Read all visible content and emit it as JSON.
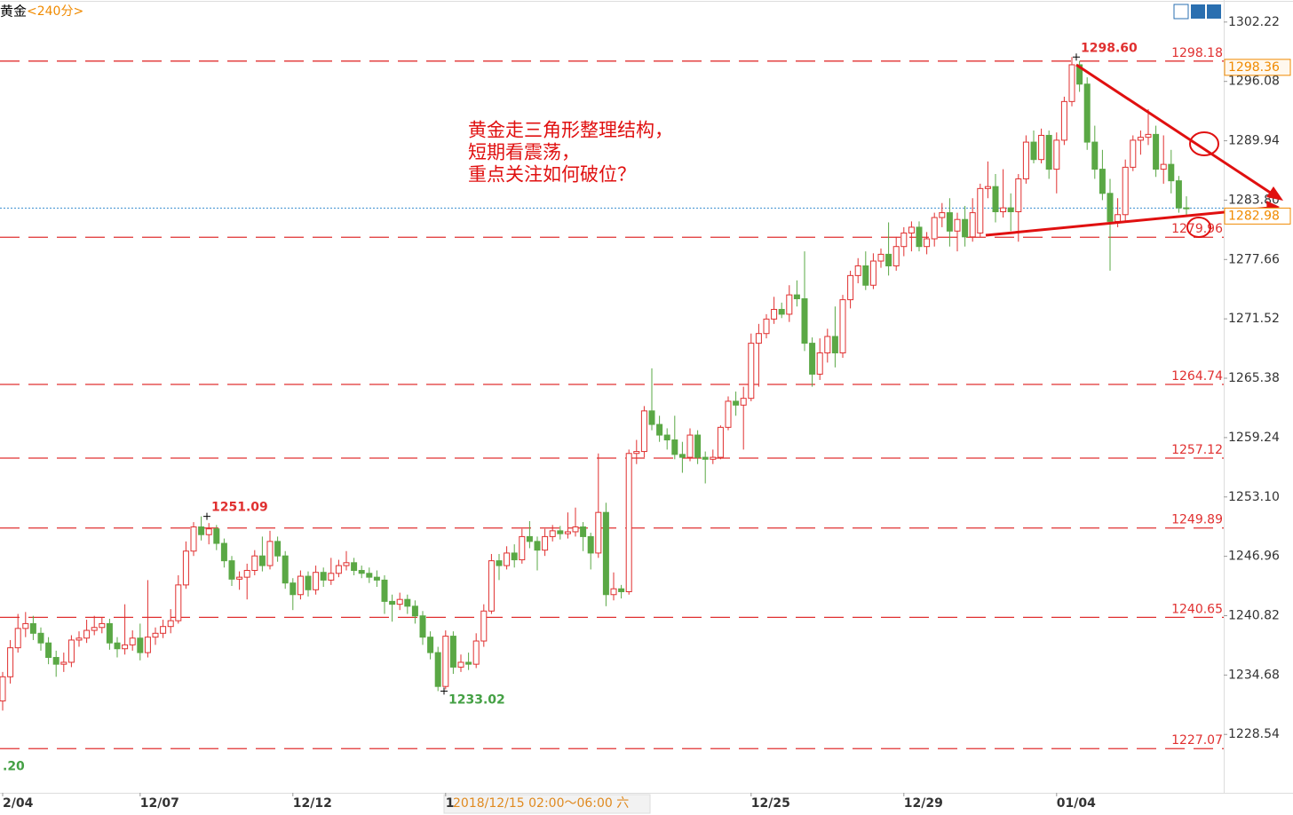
{
  "chart_data": {
    "type": "candlestick",
    "title": "黄金",
    "period": "<240分>",
    "note": [
      "黄金走三角形整理结构，",
      "短期看震荡，",
      "重点关注如何破位？"
    ],
    "cursor_label": "2018/12/15 02:00～06:00 六",
    "up_color": "#e03030",
    "down_color": "#5aa845",
    "ylim": [
      1222.5,
      1304.5
    ],
    "yticks": [
      1302.22,
      1296.08,
      1289.94,
      {
        "value": 1283.8,
        "label": "1283.80"
      },
      1277.66,
      1271.52,
      1265.38,
      1259.24,
      {
        "value": 1253.1,
        "label": "1253.10"
      },
      1246.96,
      1240.82,
      1234.68,
      1228.54
    ],
    "levels": [
      1298.18,
      1279.96,
      1264.74,
      1257.12,
      1249.89,
      1240.65,
      1227.07
    ],
    "price_tags": [
      1298.36,
      1282.98
    ],
    "extremes": [
      {
        "value": 1298.6,
        "label": "1298.60"
      },
      1251.09,
      1233.02,
      {
        "value": 1225.2,
        "label": ".20"
      }
    ],
    "categories": [
      "2/04",
      null,
      null,
      null,
      null,
      null,
      null,
      null,
      null,
      null,
      null,
      null,
      null,
      null,
      null,
      null,
      null,
      null,
      "12/07",
      null,
      null,
      null,
      null,
      null,
      null,
      null,
      null,
      null,
      null,
      null,
      null,
      null,
      null,
      null,
      null,
      null,
      null,
      null,
      "12/12",
      null,
      null,
      null,
      null,
      null,
      null,
      null,
      null,
      null,
      null,
      null,
      null,
      null,
      null,
      null,
      null,
      null,
      null,
      null,
      "1",
      null,
      null,
      null,
      null,
      null,
      null,
      null,
      null,
      null,
      null,
      null,
      null,
      null,
      null,
      null,
      null,
      null,
      null,
      null,
      null,
      null,
      null,
      null,
      null,
      null,
      null,
      null,
      null,
      null,
      null,
      null,
      null,
      null,
      null,
      null,
      null,
      null,
      null,
      null,
      "12/25",
      null,
      null,
      null,
      null,
      null,
      null,
      null,
      null,
      null,
      null,
      null,
      null,
      null,
      null,
      null,
      null,
      null,
      null,
      null,
      "12/29",
      null,
      null,
      null,
      null,
      null,
      null,
      null,
      null,
      null,
      null,
      null,
      null,
      null,
      null,
      null,
      null,
      null,
      null,
      null,
      "01/04",
      null,
      null,
      null,
      null,
      null,
      null,
      null,
      null,
      null,
      null,
      null,
      null,
      null,
      null,
      null,
      null,
      null
    ],
    "ohlc": [
      [
        1232.0,
        1235.0,
        1231.0,
        1234.5
      ],
      [
        1234.5,
        1238.3,
        1233.8,
        1237.5
      ],
      [
        1237.5,
        1241.0,
        1237.0,
        1239.5
      ],
      [
        1239.5,
        1241.2,
        1238.6,
        1240.0
      ],
      [
        1240.0,
        1240.8,
        1238.3,
        1239.0
      ],
      [
        1239.0,
        1239.6,
        1237.2,
        1238.0
      ],
      [
        1238.0,
        1238.6,
        1235.8,
        1236.5
      ],
      [
        1236.5,
        1237.2,
        1234.5,
        1235.8
      ],
      [
        1235.8,
        1237.0,
        1235.0,
        1236.0
      ],
      [
        1236.0,
        1238.8,
        1235.5,
        1238.3
      ],
      [
        1238.3,
        1239.2,
        1237.6,
        1238.5
      ],
      [
        1238.5,
        1240.4,
        1238.0,
        1239.3
      ],
      [
        1239.3,
        1240.8,
        1238.8,
        1239.6
      ],
      [
        1239.6,
        1240.6,
        1239.0,
        1240.0
      ],
      [
        1240.0,
        1240.5,
        1237.3,
        1238.0
      ],
      [
        1238.0,
        1238.6,
        1236.5,
        1237.4
      ],
      [
        1237.4,
        1242.0,
        1236.8,
        1237.8
      ],
      [
        1237.8,
        1239.3,
        1237.2,
        1238.5
      ],
      [
        1238.5,
        1240.0,
        1236.2,
        1237.0
      ],
      [
        1237.0,
        1244.5,
        1236.5,
        1238.6
      ],
      [
        1238.6,
        1239.6,
        1237.8,
        1239.0
      ],
      [
        1239.0,
        1240.4,
        1238.5,
        1239.7
      ],
      [
        1239.7,
        1241.5,
        1239.0,
        1240.3
      ],
      [
        1240.3,
        1245.0,
        1240.0,
        1244.0
      ],
      [
        1244.0,
        1248.5,
        1243.6,
        1247.5
      ],
      [
        1247.5,
        1250.5,
        1247.0,
        1250.0
      ],
      [
        1250.0,
        1251.09,
        1248.6,
        1249.2
      ],
      [
        1249.2,
        1250.4,
        1248.2,
        1249.8
      ],
      [
        1249.8,
        1250.2,
        1247.6,
        1248.3
      ],
      [
        1248.3,
        1248.8,
        1245.8,
        1246.5
      ],
      [
        1246.5,
        1247.0,
        1243.9,
        1244.6
      ],
      [
        1244.6,
        1245.4,
        1243.5,
        1244.8
      ],
      [
        1244.8,
        1246.2,
        1242.5,
        1245.5
      ],
      [
        1245.5,
        1247.6,
        1245.0,
        1247.0
      ],
      [
        1247.0,
        1249.0,
        1245.4,
        1246.0
      ],
      [
        1246.0,
        1249.6,
        1245.6,
        1248.5
      ],
      [
        1248.5,
        1249.0,
        1246.4,
        1247.0
      ],
      [
        1247.0,
        1247.5,
        1243.6,
        1244.2
      ],
      [
        1244.2,
        1244.7,
        1241.4,
        1243.0
      ],
      [
        1243.0,
        1245.5,
        1242.5,
        1244.9
      ],
      [
        1244.9,
        1245.4,
        1242.8,
        1243.5
      ],
      [
        1243.5,
        1246.0,
        1243.0,
        1245.3
      ],
      [
        1245.3,
        1245.8,
        1243.8,
        1244.5
      ],
      [
        1244.5,
        1246.8,
        1244.0,
        1245.2
      ],
      [
        1245.2,
        1246.6,
        1244.8,
        1246.0
      ],
      [
        1246.0,
        1247.5,
        1245.5,
        1246.3
      ],
      [
        1246.3,
        1246.8,
        1245.0,
        1245.5
      ],
      [
        1245.5,
        1246.0,
        1244.7,
        1245.2
      ],
      [
        1245.2,
        1245.8,
        1244.2,
        1244.8
      ],
      [
        1244.8,
        1245.5,
        1243.8,
        1244.5
      ],
      [
        1244.5,
        1245.0,
        1241.0,
        1242.3
      ],
      [
        1242.3,
        1243.0,
        1240.2,
        1242.0
      ],
      [
        1242.0,
        1243.2,
        1241.4,
        1242.5
      ],
      [
        1242.5,
        1243.0,
        1241.0,
        1241.8
      ],
      [
        1241.8,
        1242.4,
        1240.0,
        1240.8
      ],
      [
        1240.8,
        1241.3,
        1237.8,
        1238.6
      ],
      [
        1238.6,
        1239.2,
        1236.3,
        1237.0
      ],
      [
        1237.0,
        1237.6,
        1233.02,
        1233.5
      ],
      [
        1233.5,
        1239.3,
        1233.2,
        1238.7
      ],
      [
        1238.7,
        1239.2,
        1234.8,
        1235.5
      ],
      [
        1235.5,
        1236.8,
        1235.0,
        1236.0
      ],
      [
        1236.0,
        1237.0,
        1235.2,
        1235.8
      ],
      [
        1235.8,
        1239.0,
        1235.4,
        1238.2
      ],
      [
        1238.2,
        1242.0,
        1237.6,
        1241.3
      ],
      [
        1241.3,
        1247.2,
        1241.0,
        1246.5
      ],
      [
        1246.5,
        1247.2,
        1244.5,
        1246.0
      ],
      [
        1246.0,
        1248.0,
        1245.6,
        1247.3
      ],
      [
        1247.3,
        1248.2,
        1245.8,
        1246.6
      ],
      [
        1246.6,
        1249.8,
        1246.2,
        1249.0
      ],
      [
        1249.0,
        1250.6,
        1247.8,
        1248.5
      ],
      [
        1248.5,
        1249.0,
        1245.5,
        1247.6
      ],
      [
        1247.6,
        1249.8,
        1247.0,
        1249.0
      ],
      [
        1249.0,
        1250.2,
        1248.5,
        1249.6
      ],
      [
        1249.6,
        1250.1,
        1248.7,
        1249.3
      ],
      [
        1249.3,
        1251.5,
        1248.8,
        1249.5
      ],
      [
        1249.5,
        1252.0,
        1249.0,
        1250.0
      ],
      [
        1250.0,
        1250.5,
        1247.5,
        1249.0
      ],
      [
        1249.0,
        1249.4,
        1245.6,
        1247.3
      ],
      [
        1247.3,
        1257.6,
        1246.8,
        1251.5
      ],
      [
        1251.5,
        1252.5,
        1241.8,
        1243.0
      ],
      [
        1243.0,
        1245.3,
        1242.4,
        1243.6
      ],
      [
        1243.6,
        1244.0,
        1242.6,
        1243.3
      ],
      [
        1243.3,
        1258.0,
        1243.0,
        1257.6
      ],
      [
        1257.6,
        1259.0,
        1256.5,
        1257.8
      ],
      [
        1257.8,
        1262.5,
        1257.2,
        1262.0
      ],
      [
        1262.0,
        1266.4,
        1260.0,
        1260.6
      ],
      [
        1260.6,
        1261.5,
        1258.8,
        1259.5
      ],
      [
        1259.5,
        1260.2,
        1258.0,
        1259.0
      ],
      [
        1259.0,
        1261.5,
        1257.0,
        1257.5
      ],
      [
        1257.5,
        1258.8,
        1255.6,
        1257.2
      ],
      [
        1257.2,
        1260.2,
        1256.8,
        1259.5
      ],
      [
        1259.5,
        1260.0,
        1256.5,
        1257.2
      ],
      [
        1257.2,
        1257.8,
        1254.5,
        1257.0
      ],
      [
        1257.0,
        1258.0,
        1256.5,
        1257.2
      ],
      [
        1257.2,
        1260.5,
        1257.0,
        1260.3
      ],
      [
        1260.3,
        1263.5,
        1260.0,
        1263.0
      ],
      [
        1263.0,
        1264.0,
        1261.5,
        1262.6
      ],
      [
        1262.6,
        1264.5,
        1258.0,
        1263.3
      ],
      [
        1263.3,
        1270.0,
        1263.0,
        1269.0
      ],
      [
        1269.0,
        1271.0,
        1264.5,
        1270.0
      ],
      [
        1270.0,
        1272.0,
        1269.5,
        1271.5
      ],
      [
        1271.5,
        1273.8,
        1271.0,
        1272.5
      ],
      [
        1272.5,
        1273.2,
        1271.6,
        1272.0
      ],
      [
        1272.0,
        1275.0,
        1271.2,
        1274.0
      ],
      [
        1274.0,
        1275.5,
        1272.8,
        1273.6
      ],
      [
        1273.6,
        1278.5,
        1268.2,
        1269.0
      ],
      [
        1269.0,
        1269.6,
        1264.5,
        1265.8
      ],
      [
        1265.8,
        1269.5,
        1265.2,
        1268.0
      ],
      [
        1268.0,
        1270.5,
        1267.0,
        1269.7
      ],
      [
        1269.7,
        1272.8,
        1266.5,
        1268.0
      ],
      [
        1268.0,
        1274.0,
        1267.5,
        1273.5
      ],
      [
        1273.5,
        1276.5,
        1272.6,
        1276.0
      ],
      [
        1276.0,
        1277.8,
        1275.2,
        1277.0
      ],
      [
        1277.0,
        1278.5,
        1274.5,
        1275.0
      ],
      [
        1275.0,
        1278.3,
        1274.6,
        1277.5
      ],
      [
        1277.5,
        1278.8,
        1276.8,
        1278.2
      ],
      [
        1278.2,
        1281.5,
        1276.0,
        1277.0
      ],
      [
        1277.0,
        1280.0,
        1276.5,
        1279.0
      ],
      [
        1279.0,
        1281.0,
        1278.0,
        1280.4
      ],
      [
        1280.4,
        1281.6,
        1278.5,
        1281.0
      ],
      [
        1281.0,
        1281.6,
        1278.5,
        1279.0
      ],
      [
        1279.0,
        1280.5,
        1278.2,
        1279.8
      ],
      [
        1279.8,
        1282.5,
        1279.0,
        1282.0
      ],
      [
        1282.0,
        1283.5,
        1281.0,
        1282.5
      ],
      [
        1282.5,
        1284.0,
        1279.0,
        1280.6
      ],
      [
        1280.6,
        1282.5,
        1278.5,
        1281.8
      ],
      [
        1281.8,
        1283.2,
        1279.0,
        1280.0
      ],
      [
        1280.0,
        1284.0,
        1279.5,
        1282.5
      ],
      [
        1280.4,
        1285.5,
        1280.0,
        1285.0
      ],
      [
        1285.0,
        1287.8,
        1284.0,
        1285.2
      ],
      [
        1285.2,
        1286.5,
        1281.5,
        1282.6
      ],
      [
        1282.6,
        1287.0,
        1282.0,
        1283.0
      ],
      [
        1283.0,
        1284.5,
        1280.6,
        1282.6
      ],
      [
        1282.6,
        1286.5,
        1279.5,
        1286.0
      ],
      [
        1286.0,
        1290.5,
        1285.5,
        1289.8
      ],
      [
        1289.8,
        1291.0,
        1287.6,
        1288.0
      ],
      [
        1288.0,
        1291.2,
        1287.6,
        1290.5
      ],
      [
        1290.5,
        1291.0,
        1286.0,
        1287.0
      ],
      [
        1287.0,
        1290.8,
        1284.5,
        1290.0
      ],
      [
        1290.0,
        1294.5,
        1289.5,
        1294.0
      ],
      [
        1294.0,
        1298.6,
        1293.5,
        1297.8
      ],
      [
        1297.8,
        1298.2,
        1295.0,
        1295.8
      ],
      [
        1295.8,
        1296.5,
        1289.0,
        1289.8
      ],
      [
        1289.8,
        1291.5,
        1286.0,
        1287.0
      ],
      [
        1287.0,
        1289.0,
        1283.8,
        1284.5
      ],
      [
        1284.5,
        1286.0,
        1276.5,
        1281.6
      ],
      [
        1281.6,
        1284.0,
        1281.0,
        1282.3
      ],
      [
        1282.3,
        1288.0,
        1281.5,
        1287.2
      ],
      [
        1287.2,
        1290.5,
        1286.8,
        1290.0
      ],
      [
        1290.0,
        1291.0,
        1288.5,
        1290.3
      ],
      [
        1290.3,
        1293.2,
        1289.5,
        1290.6
      ],
      [
        1290.6,
        1291.5,
        1286.2,
        1287.0
      ],
      [
        1287.0,
        1290.5,
        1285.5,
        1287.5
      ],
      [
        1287.5,
        1289.0,
        1284.5,
        1285.8
      ],
      [
        1285.8,
        1286.3,
        1282.5,
        1283.0
      ],
      [
        1283.0,
        1284.2,
        1282.2,
        1282.98
      ]
    ]
  }
}
